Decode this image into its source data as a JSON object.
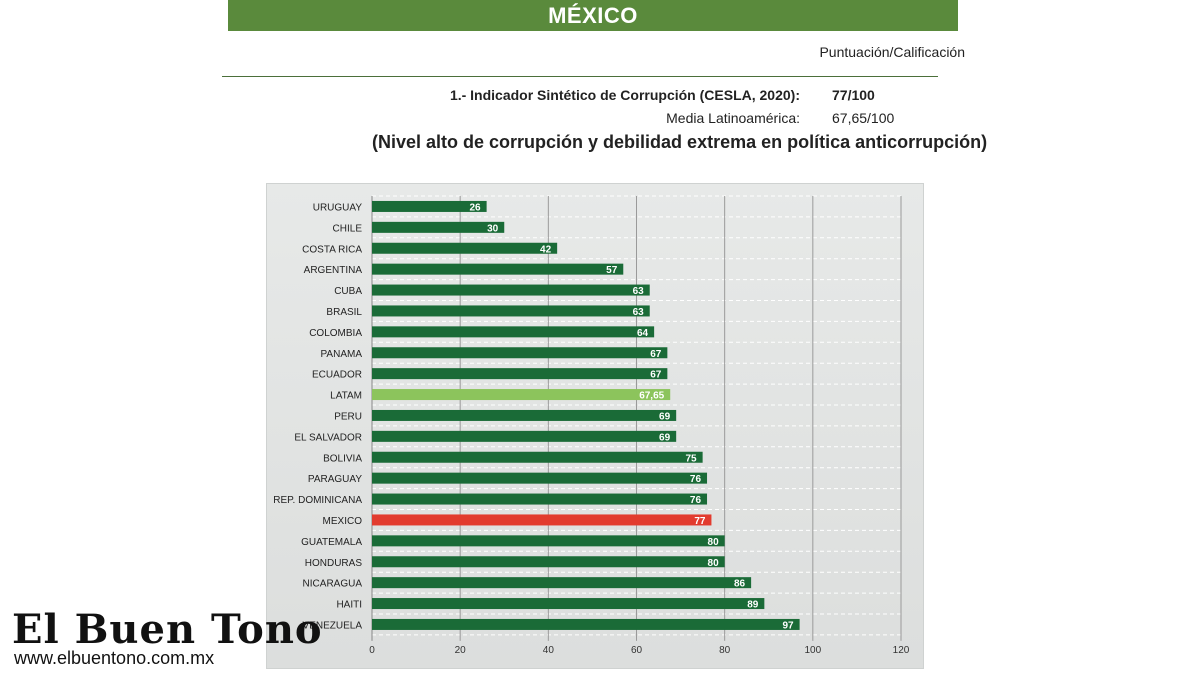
{
  "header": {
    "title": "MÉXICO"
  },
  "score_caption": "Puntuación/Calificación",
  "indicator": {
    "label": "1.- Indicador Sintético de Corrupción (CESLA, 2020):",
    "value": "77/100",
    "mean_label": "Media Latinoamérica:",
    "mean_value": "67,65/100",
    "note": "(Nivel alto de corrupción y debilidad extrema en política anticorrupción)"
  },
  "colors": {
    "bar": "#1a6b37",
    "highlight_mean": "#8cc45c",
    "highlight_country": "#e23b2e",
    "banner": "#5a8a3c"
  },
  "chart_data": {
    "type": "bar",
    "orientation": "horizontal",
    "categories": [
      "URUGUAY",
      "CHILE",
      "COSTA RICA",
      "ARGENTINA",
      "CUBA",
      "BRASIL",
      "COLOMBIA",
      "PANAMA",
      "ECUADOR",
      "LATAM",
      "PERU",
      "EL SALVADOR",
      "BOLIVIA",
      "PARAGUAY",
      "REP. DOMINICANA",
      "MEXICO",
      "GUATEMALA",
      "HONDURAS",
      "NICARAGUA",
      "HAITI",
      "VENEZUELA"
    ],
    "values": [
      26,
      30,
      42,
      57,
      63,
      63,
      64,
      67,
      67,
      67.65,
      69,
      69,
      75,
      76,
      76,
      77,
      80,
      80,
      86,
      89,
      97
    ],
    "value_labels": [
      "26",
      "30",
      "42",
      "57",
      "63",
      "63",
      "64",
      "67",
      "67",
      "67,65",
      "69",
      "69",
      "75",
      "76",
      "76",
      "77",
      "80",
      "80",
      "86",
      "89",
      "97"
    ],
    "highlight": {
      "LATAM": "#8cc45c",
      "MEXICO": "#e23b2e"
    },
    "xlim": [
      0,
      120
    ],
    "xticks": [
      0,
      20,
      40,
      60,
      80,
      100,
      120
    ],
    "grid": true
  },
  "logo": {
    "name": "El Buen Tono",
    "url": "www.elbuentono.com.mx"
  }
}
